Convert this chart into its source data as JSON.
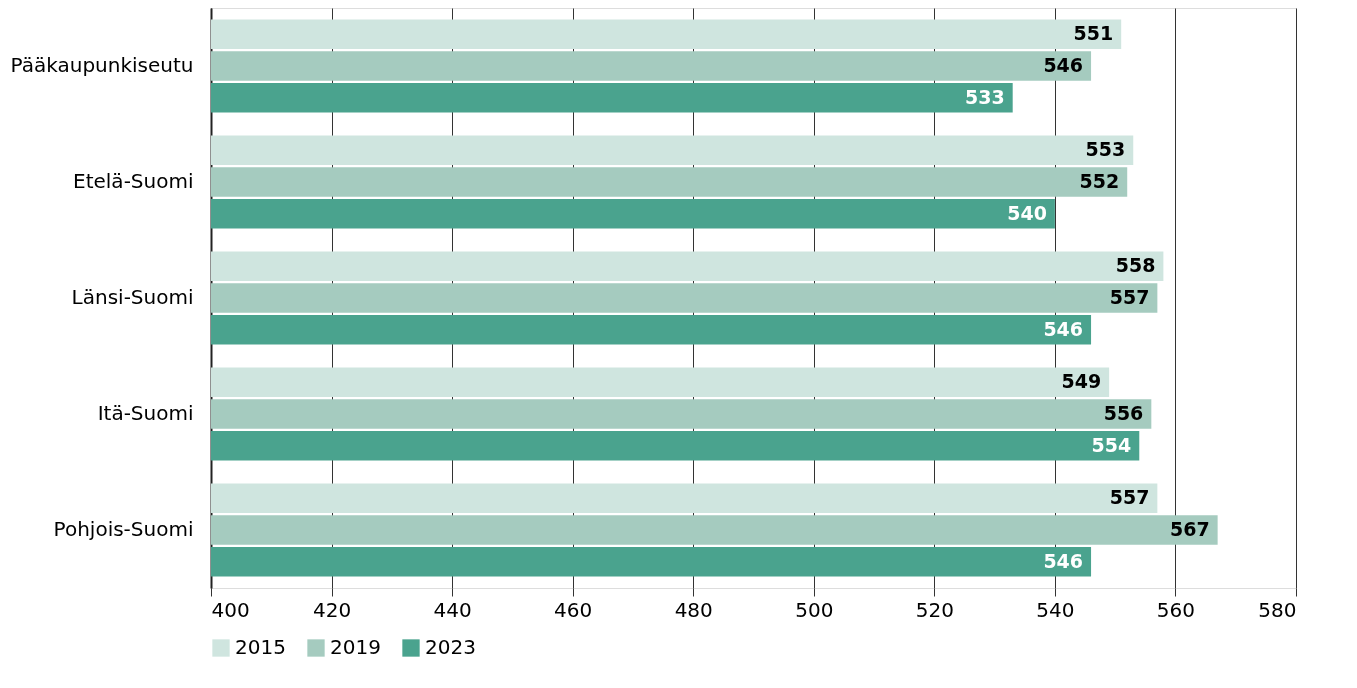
{
  "chart_data": {
    "type": "bar",
    "orientation": "horizontal",
    "categories": [
      "Pääkaupunkiseutu",
      "Etelä-Suomi",
      "Länsi-Suomi",
      "Itä-Suomi",
      "Pohjois-Suomi"
    ],
    "series": [
      {
        "name": "2015",
        "color": "#cfe5df",
        "values": [
          551,
          553,
          558,
          549,
          557
        ]
      },
      {
        "name": "2019",
        "color": "#a5cbbf",
        "values": [
          546,
          552,
          557,
          556,
          567
        ]
      },
      {
        "name": "2023",
        "color": "#4aa38e",
        "values": [
          533,
          540,
          546,
          554,
          546
        ]
      }
    ],
    "xlim": [
      400,
      580
    ],
    "xticks": [
      400,
      420,
      440,
      460,
      480,
      500,
      520,
      540,
      560,
      580
    ],
    "grid": "x",
    "legend": "bottom",
    "data_labels": true
  }
}
